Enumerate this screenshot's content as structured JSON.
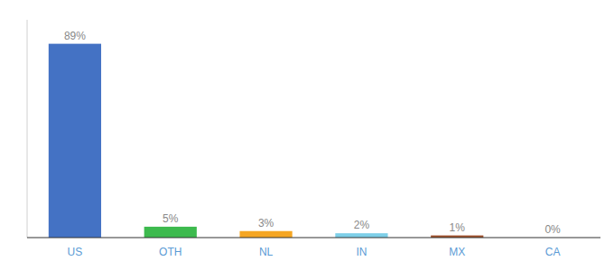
{
  "chart_data": {
    "type": "bar",
    "categories": [
      "US",
      "OTH",
      "NL",
      "IN",
      "MX",
      "CA"
    ],
    "values": [
      89,
      5,
      3,
      2,
      1,
      0
    ],
    "value_labels": [
      "89%",
      "5%",
      "3%",
      "2%",
      "1%",
      "0%"
    ],
    "colors": [
      "#4472c4",
      "#3dba4e",
      "#f5a623",
      "#7ecfe8",
      "#a0522d",
      "#cccccc"
    ],
    "ylim": [
      0,
      100
    ],
    "data_labels": true,
    "tick_labels": "x",
    "grid": false
  }
}
